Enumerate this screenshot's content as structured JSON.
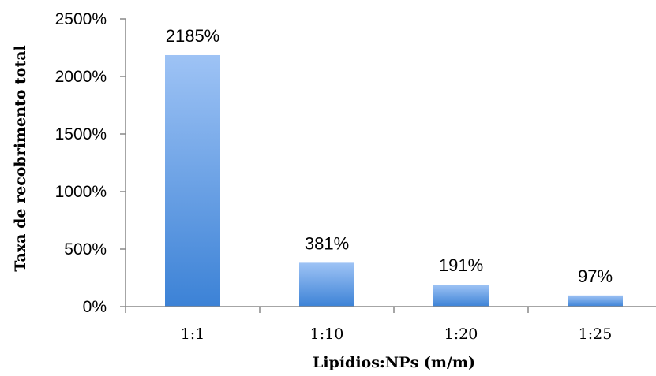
{
  "chart_data": {
    "type": "bar",
    "categories": [
      "1:1",
      "1:10",
      "1:20",
      "1:25"
    ],
    "values": [
      2185,
      381,
      191,
      97
    ],
    "data_labels": [
      "2185%",
      "381%",
      "191%",
      "97%"
    ],
    "ylim": [
      0,
      2500
    ],
    "yticks": [
      0,
      500,
      1000,
      1500,
      2000,
      2500
    ],
    "ytick_labels": [
      "0%",
      "500%",
      "1000%",
      "1500%",
      "2000%",
      "2500%"
    ],
    "xlabel": "Lipídios:NPs (m/m)",
    "ylabel": "Taxa de recobrimento total",
    "grid": false,
    "legend": "none",
    "colors": {
      "bar_top": "#9ec3f5",
      "bar_bottom": "#3c82d6",
      "axis": "#888888"
    }
  }
}
